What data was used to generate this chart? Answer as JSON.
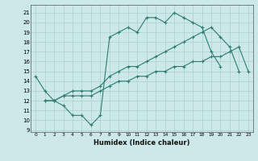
{
  "line1_x": [
    0,
    1,
    2,
    3,
    4,
    5,
    6,
    7,
    8,
    9,
    10,
    11,
    12,
    13,
    14,
    15,
    16,
    17,
    18,
    19,
    20
  ],
  "line1_y": [
    14.5,
    13.0,
    12.0,
    11.5,
    10.5,
    10.5,
    9.5,
    10.5,
    18.5,
    19.0,
    19.5,
    19.0,
    20.5,
    20.5,
    20.0,
    21.0,
    20.5,
    20.0,
    19.5,
    17.0,
    15.5
  ],
  "line2_x": [
    1,
    2,
    3,
    4,
    5,
    6,
    7,
    8,
    9,
    10,
    11,
    12,
    13,
    14,
    15,
    16,
    17,
    18,
    19,
    20,
    21,
    22,
    23
  ],
  "line2_y": [
    12.0,
    12.0,
    12.5,
    12.5,
    12.5,
    12.5,
    13.0,
    13.5,
    14.0,
    14.0,
    14.5,
    14.5,
    15.0,
    15.0,
    15.5,
    15.5,
    16.0,
    16.0,
    16.5,
    16.5,
    17.0,
    17.5,
    15.0
  ],
  "line3_x": [
    1,
    2,
    3,
    4,
    5,
    6,
    7,
    8,
    9,
    10,
    11,
    12,
    13,
    14,
    15,
    16,
    17,
    18,
    19,
    20,
    21,
    22
  ],
  "line3_y": [
    12.0,
    12.0,
    12.5,
    13.0,
    13.0,
    13.0,
    13.5,
    14.5,
    15.0,
    15.5,
    15.5,
    16.0,
    16.5,
    17.0,
    17.5,
    18.0,
    18.5,
    19.0,
    19.5,
    18.5,
    17.5,
    15.0
  ],
  "color": "#2d7d6e",
  "bg_color": "#cce8e8",
  "grid_color": "#aacfcf",
  "xlabel": "Humidex (Indice chaleur)",
  "ylabel_ticks": [
    9,
    10,
    11,
    12,
    13,
    14,
    15,
    16,
    17,
    18,
    19,
    20,
    21
  ],
  "xlim": [
    -0.5,
    23.5
  ],
  "ylim": [
    8.8,
    21.8
  ],
  "xticks": [
    0,
    1,
    2,
    3,
    4,
    5,
    6,
    7,
    8,
    9,
    10,
    11,
    12,
    13,
    14,
    15,
    16,
    17,
    18,
    19,
    20,
    21,
    22,
    23
  ]
}
